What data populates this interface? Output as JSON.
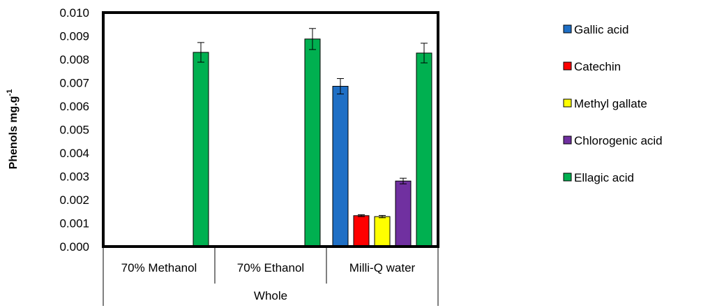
{
  "chart_data": {
    "type": "bar",
    "ylabel": "Phenols mg.g",
    "ylabel_superscript": "-1",
    "ylim": [
      0,
      0.01
    ],
    "yticks": [
      "0.000",
      "0.001",
      "0.002",
      "0.003",
      "0.004",
      "0.005",
      "0.006",
      "0.007",
      "0.008",
      "0.009",
      "0.010"
    ],
    "categories": [
      "70% Methanol",
      "70% Ethanol",
      "Milli-Q water"
    ],
    "group_label": "Whole",
    "legend_position": "right",
    "grid": false,
    "series": [
      {
        "name": "Gallic acid",
        "color": "#1f6fc5",
        "values": [
          null,
          null,
          0.00685
        ],
        "errors": [
          null,
          null,
          0.00033
        ]
      },
      {
        "name": "Catechin",
        "color": "#ff0000",
        "values": [
          null,
          null,
          0.00132
        ],
        "errors": [
          null,
          null,
          4e-05
        ]
      },
      {
        "name": "Methyl gallate",
        "color": "#ffff00",
        "values": [
          null,
          null,
          0.00128
        ],
        "errors": [
          null,
          null,
          5e-05
        ]
      },
      {
        "name": "Chlorogenic acid",
        "color": "#7030a0",
        "values": [
          null,
          null,
          0.0028
        ],
        "errors": [
          null,
          null,
          0.00012
        ]
      },
      {
        "name": "Ellagic acid",
        "color": "#00b050",
        "values": [
          0.0083,
          0.00887,
          0.00827
        ],
        "errors": [
          0.00042,
          0.00045,
          0.00042
        ]
      }
    ]
  }
}
